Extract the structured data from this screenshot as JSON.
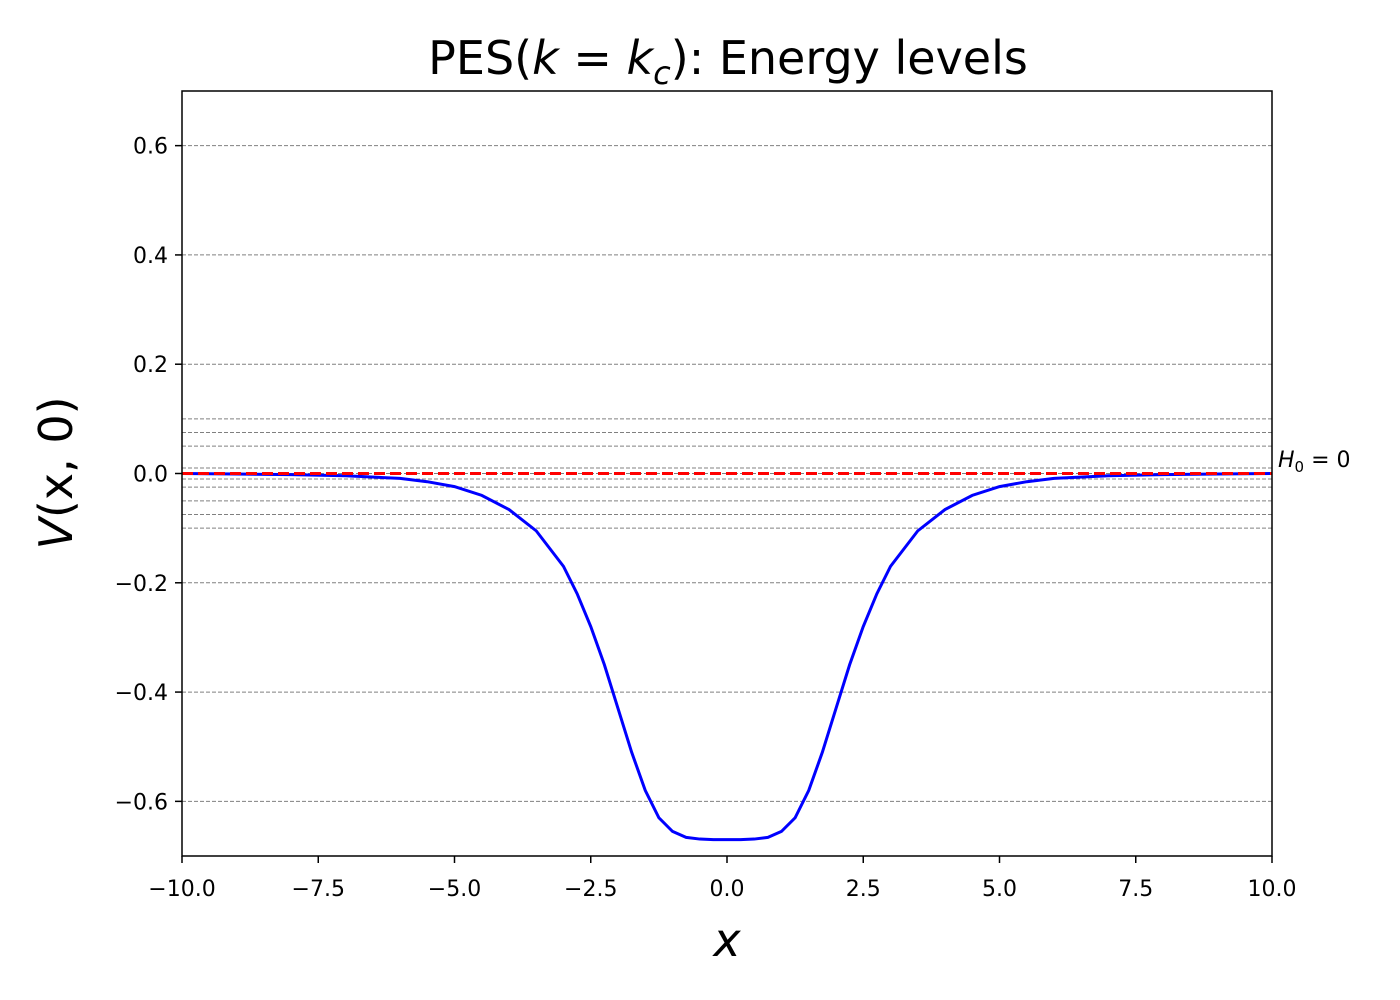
{
  "chart_data": {
    "type": "line",
    "title_parts": {
      "prefix": "PES(",
      "k": "k",
      "eq": " = ",
      "kc": "k",
      "kc_sub": "c",
      "suffix": "): Energy levels"
    },
    "xlabel": "x",
    "ylabel_parts": {
      "V": "V",
      "args": "(x, 0)"
    },
    "xlim": [
      -10,
      10
    ],
    "ylim": [
      -0.7,
      0.7
    ],
    "xticks": [
      -10,
      -7.5,
      -5,
      -2.5,
      0,
      2.5,
      5,
      7.5,
      10
    ],
    "xtick_labels": [
      "−10.0",
      "−7.5",
      "−5.0",
      "−2.5",
      "0.0",
      "2.5",
      "5.0",
      "7.5",
      "10.0"
    ],
    "yticks": [
      -0.6,
      -0.4,
      -0.2,
      0.0,
      0.2,
      0.4,
      0.6
    ],
    "ytick_labels": [
      "−0.6",
      "−0.4",
      "−0.2",
      "0.0",
      "0.2",
      "0.4",
      "0.6"
    ],
    "energy_levels": [
      -0.6,
      -0.4,
      -0.2,
      -0.1,
      -0.075,
      -0.05,
      -0.025,
      -0.01,
      0.0,
      0.01,
      0.05,
      0.075,
      0.1,
      0.2,
      0.4,
      0.6
    ],
    "series": [
      {
        "color": "#0000ff",
        "style": "solid",
        "x": [
          -10,
          -9,
          -8,
          -7,
          -6,
          -5.5,
          -5,
          -4.5,
          -4,
          -3.5,
          -3,
          -2.75,
          -2.5,
          -2.25,
          -2,
          -1.75,
          -1.5,
          -1.25,
          -1,
          -0.75,
          -0.5,
          -0.25,
          0,
          0.25,
          0.5,
          0.75,
          1,
          1.25,
          1.5,
          1.75,
          2,
          2.25,
          2.5,
          2.75,
          3,
          3.5,
          4,
          4.5,
          5,
          5.5,
          6,
          7,
          8,
          9,
          10
        ],
        "y": [
          0.0,
          -0.001,
          -0.002,
          -0.004,
          -0.009,
          -0.015,
          -0.024,
          -0.04,
          -0.066,
          -0.105,
          -0.17,
          -0.22,
          -0.28,
          -0.35,
          -0.43,
          -0.51,
          -0.58,
          -0.63,
          -0.655,
          -0.666,
          -0.669,
          -0.67,
          -0.67,
          -0.67,
          -0.669,
          -0.666,
          -0.655,
          -0.63,
          -0.58,
          -0.51,
          -0.43,
          -0.35,
          -0.28,
          -0.22,
          -0.17,
          -0.105,
          -0.066,
          -0.04,
          -0.024,
          -0.015,
          -0.009,
          -0.004,
          -0.002,
          -0.001,
          0.0
        ]
      },
      {
        "color": "#ff0000",
        "style": "dashed",
        "y_const": 0.0
      }
    ],
    "annotation": {
      "H": "H",
      "sub": "0",
      "rest": " = 0",
      "y": 0.0
    },
    "grid": "horizontal dashed at energy levels"
  }
}
